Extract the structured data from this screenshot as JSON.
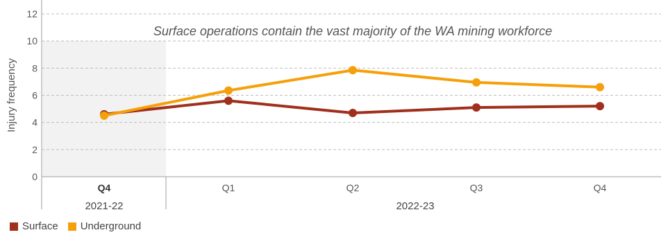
{
  "chart_data": {
    "type": "line",
    "categories": [
      "Q4",
      "Q1",
      "Q2",
      "Q3",
      "Q4"
    ],
    "category_groups": [
      {
        "label": "2021-22",
        "categories": [
          "Q4"
        ]
      },
      {
        "label": "2022-23",
        "categories": [
          "Q1",
          "Q2",
          "Q3",
          "Q4"
        ]
      }
    ],
    "highlight_group": "2021-22",
    "series": [
      {
        "name": "Surface",
        "color": "#a0301c",
        "values": [
          4.6,
          5.6,
          4.7,
          5.1,
          5.2
        ]
      },
      {
        "name": "Underground",
        "color": "#f5a00a",
        "values": [
          4.5,
          6.35,
          7.85,
          6.95,
          6.6
        ]
      }
    ],
    "ylabel": "Injury frequency",
    "ylim": [
      0,
      12
    ],
    "yticks": [
      "0",
      "2",
      "4",
      "6",
      "8",
      "10",
      "12"
    ],
    "annotation": "Surface operations contain the vast majority of the WA mining workforce",
    "grid": true,
    "legend_position": "bottom-left"
  }
}
